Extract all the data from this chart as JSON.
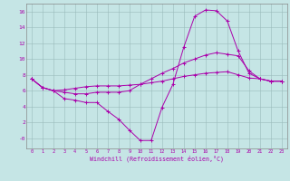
{
  "xlabel": "Windchill (Refroidissement éolien,°C)",
  "bg_color": "#c5e5e5",
  "line_color": "#aa00aa",
  "grid_color": "#99bbbb",
  "xlim_min": -0.5,
  "xlim_max": 23.5,
  "ylim_min": -1.3,
  "ylim_max": 17.0,
  "ytick_vals": [
    0,
    2,
    4,
    6,
    8,
    10,
    12,
    14,
    16
  ],
  "ytick_labels": [
    "-0",
    "2",
    "4",
    "6",
    "8",
    "10",
    "12",
    "14",
    "16"
  ],
  "xtick_vals": [
    0,
    1,
    2,
    3,
    4,
    5,
    6,
    7,
    8,
    9,
    10,
    11,
    12,
    13,
    14,
    15,
    16,
    17,
    18,
    19,
    20,
    21,
    22,
    23
  ],
  "series1": [
    7.5,
    6.4,
    6.0,
    5.0,
    4.8,
    4.5,
    4.5,
    3.4,
    2.4,
    1.0,
    -0.3,
    -0.3,
    3.9,
    6.8,
    11.5,
    15.4,
    16.2,
    16.1,
    14.8,
    11.0,
    8.2,
    7.5,
    7.2,
    7.2
  ],
  "series2": [
    7.5,
    6.4,
    6.0,
    5.8,
    5.6,
    5.6,
    5.8,
    5.8,
    5.8,
    6.0,
    6.8,
    7.5,
    8.2,
    8.8,
    9.5,
    10.0,
    10.5,
    10.8,
    10.6,
    10.4,
    8.5,
    7.5,
    7.2,
    7.2
  ],
  "series3": [
    7.5,
    6.4,
    6.0,
    6.1,
    6.3,
    6.5,
    6.6,
    6.6,
    6.6,
    6.7,
    6.8,
    7.0,
    7.2,
    7.5,
    7.8,
    8.0,
    8.2,
    8.3,
    8.4,
    8.0,
    7.6,
    7.5,
    7.2,
    7.2
  ]
}
